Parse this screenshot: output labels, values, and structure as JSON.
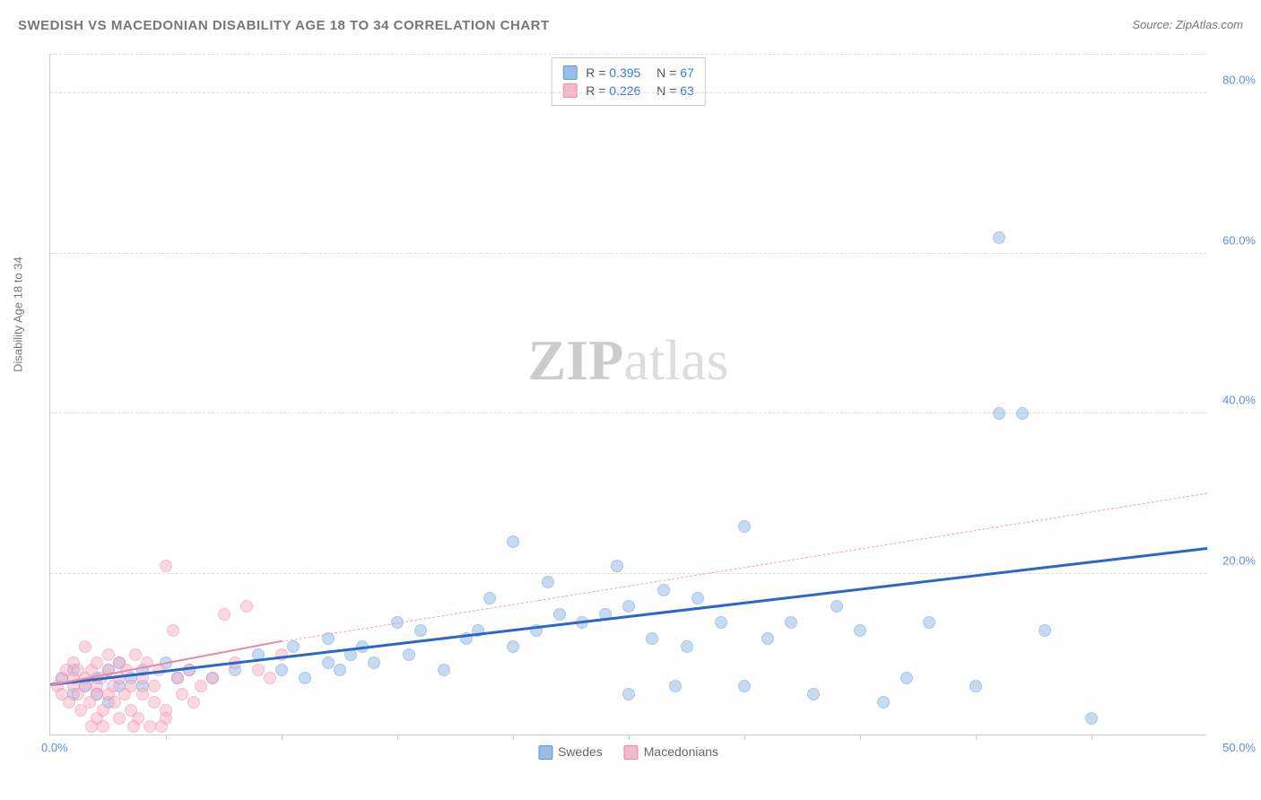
{
  "title": "SWEDISH VS MACEDONIAN DISABILITY AGE 18 TO 34 CORRELATION CHART",
  "source": "Source: ZipAtlas.com",
  "ylabel": "Disability Age 18 to 34",
  "watermark_bold": "ZIP",
  "watermark_light": "atlas",
  "chart": {
    "type": "scatter",
    "background_color": "#ffffff",
    "grid_color": "#dddddd",
    "axis_color": "#cccccc",
    "tick_label_color": "#5b8fd6",
    "xlim": [
      0,
      50
    ],
    "ylim": [
      0,
      85
    ],
    "y_ticks": [
      20,
      40,
      60,
      80
    ],
    "y_tick_labels": [
      "20.0%",
      "40.0%",
      "60.0%",
      "80.0%"
    ],
    "x_ticks": [
      5,
      10,
      15,
      20,
      25,
      30,
      35,
      40,
      45
    ],
    "x_origin_label": "0.0%",
    "x_max_label": "50.0%",
    "marker_radius": 7,
    "marker_opacity": 0.55,
    "series": [
      {
        "name": "Swedes",
        "color": "#99bce8",
        "border_color": "#6699d8",
        "r_value": "0.395",
        "n_value": "67",
        "trend": {
          "color": "#2968c8",
          "width": 3,
          "x1": 0,
          "y1": 6,
          "x2": 50,
          "y2": 23,
          "style": "solid"
        },
        "points": [
          [
            0.5,
            7
          ],
          [
            1,
            5
          ],
          [
            1,
            8
          ],
          [
            1.5,
            6
          ],
          [
            2,
            5
          ],
          [
            2,
            7
          ],
          [
            2.5,
            4
          ],
          [
            2.5,
            8
          ],
          [
            3,
            6
          ],
          [
            3,
            9
          ],
          [
            3.5,
            7
          ],
          [
            4,
            6
          ],
          [
            4,
            8
          ],
          [
            5,
            9
          ],
          [
            5.5,
            7
          ],
          [
            6,
            8
          ],
          [
            7,
            7
          ],
          [
            8,
            8
          ],
          [
            9,
            10
          ],
          [
            10,
            8
          ],
          [
            10.5,
            11
          ],
          [
            11,
            7
          ],
          [
            12,
            9
          ],
          [
            12,
            12
          ],
          [
            12.5,
            8
          ],
          [
            13,
            10
          ],
          [
            13.5,
            11
          ],
          [
            14,
            9
          ],
          [
            15,
            14
          ],
          [
            15.5,
            10
          ],
          [
            16,
            13
          ],
          [
            17,
            8
          ],
          [
            18,
            12
          ],
          [
            18.5,
            13
          ],
          [
            20,
            24
          ],
          [
            19,
            17
          ],
          [
            20,
            11
          ],
          [
            21,
            13
          ],
          [
            21.5,
            19
          ],
          [
            22,
            15
          ],
          [
            23,
            14
          ],
          [
            24,
            15
          ],
          [
            24.5,
            21
          ],
          [
            25,
            16
          ],
          [
            25,
            5
          ],
          [
            26,
            12
          ],
          [
            26.5,
            18
          ],
          [
            27,
            6
          ],
          [
            27.5,
            11
          ],
          [
            28,
            17
          ],
          [
            29,
            14
          ],
          [
            30,
            26
          ],
          [
            30,
            6
          ],
          [
            31,
            12
          ],
          [
            32,
            14
          ],
          [
            33,
            5
          ],
          [
            34,
            16
          ],
          [
            35,
            13
          ],
          [
            36,
            4
          ],
          [
            37,
            7
          ],
          [
            38,
            14
          ],
          [
            40,
            6
          ],
          [
            41,
            40
          ],
          [
            42,
            40
          ],
          [
            43,
            13
          ],
          [
            45,
            2
          ],
          [
            41,
            62
          ]
        ]
      },
      {
        "name": "Macedonians",
        "color": "#f7b8c9",
        "border_color": "#e88aa8",
        "r_value": "0.226",
        "n_value": "63",
        "trend_solid": {
          "color": "#e88aa8",
          "width": 2,
          "x1": 0,
          "y1": 6,
          "x2": 10,
          "y2": 11.5,
          "style": "solid"
        },
        "trend_dash": {
          "color": "#e9a8b8",
          "width": 1.5,
          "x1": 10,
          "y1": 11.5,
          "x2": 50,
          "y2": 30,
          "style": "dashed"
        },
        "points": [
          [
            0.3,
            6
          ],
          [
            0.5,
            7
          ],
          [
            0.5,
            5
          ],
          [
            0.7,
            8
          ],
          [
            0.8,
            4
          ],
          [
            1,
            6
          ],
          [
            1,
            7
          ],
          [
            1,
            9
          ],
          [
            1.2,
            5
          ],
          [
            1.2,
            8
          ],
          [
            1.3,
            3
          ],
          [
            1.5,
            6
          ],
          [
            1.5,
            7
          ],
          [
            1.5,
            11
          ],
          [
            1.7,
            4
          ],
          [
            1.8,
            8
          ],
          [
            2,
            6
          ],
          [
            2,
            5
          ],
          [
            2,
            9
          ],
          [
            2,
            2
          ],
          [
            2.2,
            7
          ],
          [
            2.3,
            3
          ],
          [
            2.5,
            8
          ],
          [
            2.5,
            5
          ],
          [
            2.5,
            10
          ],
          [
            2.7,
            6
          ],
          [
            2.8,
            4
          ],
          [
            3,
            7
          ],
          [
            3,
            2
          ],
          [
            3,
            9
          ],
          [
            3.2,
            5
          ],
          [
            3.3,
            8
          ],
          [
            3.5,
            6
          ],
          [
            3.5,
            3
          ],
          [
            3.7,
            10
          ],
          [
            3.8,
            2
          ],
          [
            4,
            7
          ],
          [
            4,
            5
          ],
          [
            4.2,
            9
          ],
          [
            4.3,
            1
          ],
          [
            4.5,
            6
          ],
          [
            4.5,
            4
          ],
          [
            4.7,
            8
          ],
          [
            5,
            3
          ],
          [
            5,
            2
          ],
          [
            5,
            21
          ],
          [
            5.3,
            13
          ],
          [
            5.5,
            7
          ],
          [
            5.7,
            5
          ],
          [
            6,
            8
          ],
          [
            6.2,
            4
          ],
          [
            6.5,
            6
          ],
          [
            7,
            7
          ],
          [
            7.5,
            15
          ],
          [
            8,
            9
          ],
          [
            8.5,
            16
          ],
          [
            9,
            8
          ],
          [
            9.5,
            7
          ],
          [
            10,
            10
          ],
          [
            2.3,
            1
          ],
          [
            1.8,
            1
          ],
          [
            3.6,
            1
          ],
          [
            4.8,
            1
          ]
        ]
      }
    ]
  },
  "legend_bottom": [
    {
      "label": "Swedes",
      "color": "#99bce8",
      "border": "#6699d8"
    },
    {
      "label": "Macedonians",
      "color": "#f7b8c9",
      "border": "#e88aa8"
    }
  ]
}
